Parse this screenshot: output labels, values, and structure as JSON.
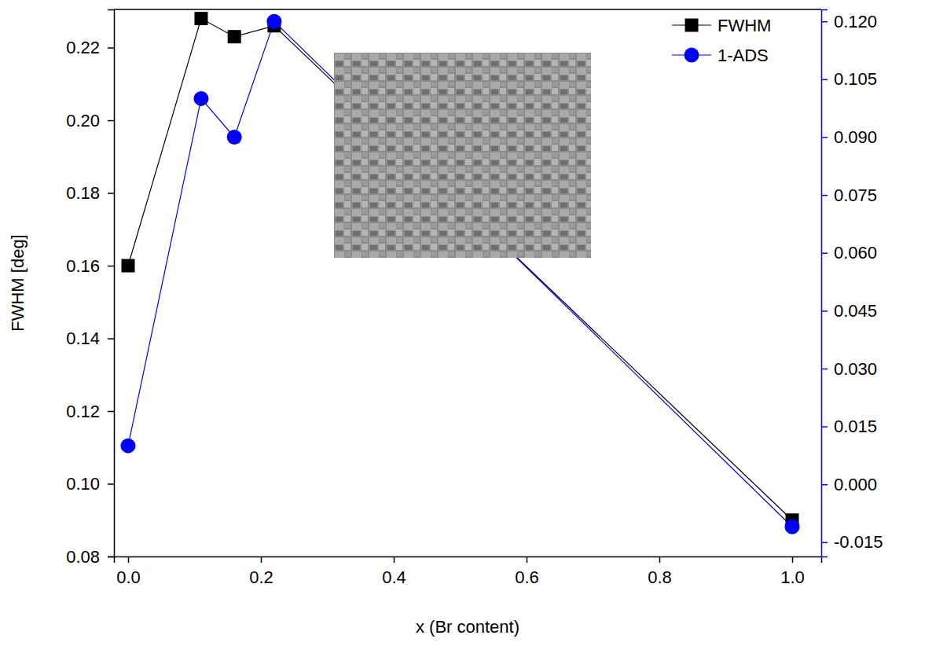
{
  "chart_data": {
    "type": "line",
    "x_label": "x (Br content)",
    "y_label": "FWHM [deg]",
    "x": [
      0,
      0.11,
      0.16,
      0.22,
      1.0
    ],
    "series": [
      {
        "name": "FWHM",
        "color": "#000000",
        "marker": "square",
        "line_style": "solid",
        "values": [
          0.16,
          0.228,
          0.223,
          0.226,
          0.09
        ]
      },
      {
        "name": "1-ADS",
        "color": "#0000ff",
        "marker": "circle",
        "line_style": "solid",
        "axis": "y2",
        "values": [
          0.01,
          0.1,
          0.09,
          0.12,
          -0.011
        ]
      }
    ],
    "xlim": [
      -0.0213,
      1.0438
    ],
    "xticks": [
      {
        "value": 0,
        "label": "0.0"
      },
      0.2,
      0.4,
      0.6,
      0.8,
      {
        "value": 1,
        "label": "1.0"
      }
    ],
    "ylim": [
      0.08,
      0.2305
    ],
    "yticks": [
      0.08,
      {
        "value": 0.1,
        "label": "0.10"
      },
      0.12,
      0.14,
      0.16,
      0.18,
      {
        "value": 0.2,
        "label": "0.20"
      },
      0.22
    ],
    "y2lim": [
      -0.0187,
      0.1231
    ],
    "y2ticks": [
      {
        "value": -0.015,
        "label": "-0.015"
      },
      {
        "value": 0,
        "label": "0.000"
      },
      0.015,
      {
        "value": 0.03,
        "label": "0.030"
      },
      0.045,
      {
        "value": 0.06,
        "label": "0.060"
      },
      0.075,
      {
        "value": 0.09,
        "label": "0.090"
      },
      0.105,
      {
        "value": 0.12,
        "label": "0.120"
      }
    ],
    "legend": "upper right",
    "grid": false
  }
}
